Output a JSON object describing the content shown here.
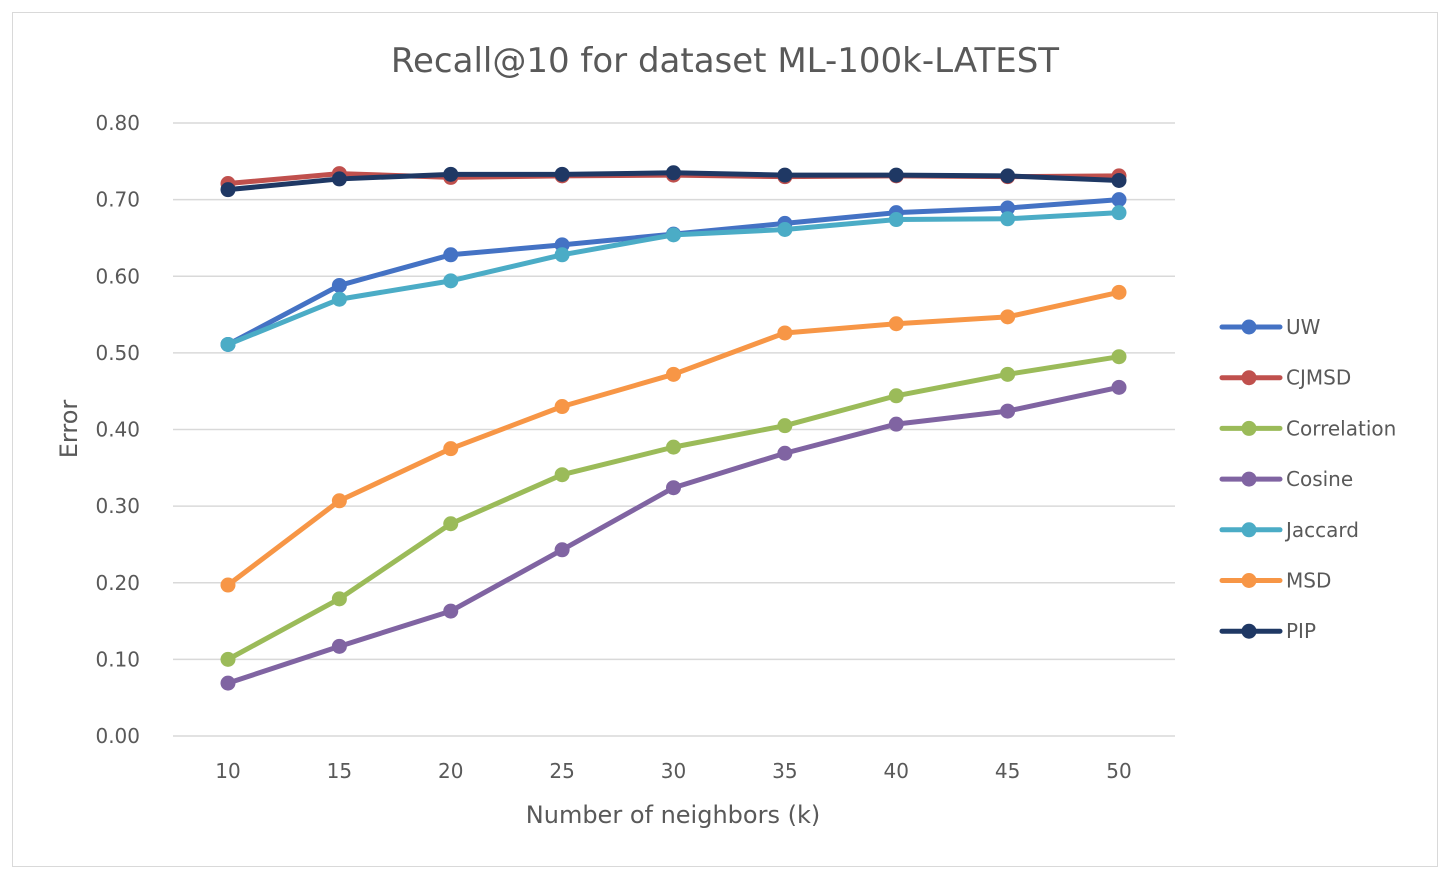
{
  "chart_data": {
    "type": "line",
    "title": "Recall@10 for dataset ML-100k-LATEST",
    "xlabel": "Number of neighbors (k)",
    "ylabel": "Error",
    "x": [
      10,
      15,
      20,
      25,
      30,
      35,
      40,
      45,
      50
    ],
    "x_tick_labels": [
      "10",
      "15",
      "20",
      "25",
      "30",
      "35",
      "40",
      "45",
      "50"
    ],
    "ylim": [
      0,
      0.8
    ],
    "y_ticks": [
      0,
      0.1,
      0.2,
      0.3,
      0.4,
      0.5,
      0.6,
      0.7,
      0.8
    ],
    "y_tick_labels": [
      "0.00",
      "0.10",
      "0.20",
      "0.30",
      "0.40",
      "0.50",
      "0.60",
      "0.70",
      "0.80"
    ],
    "grid": true,
    "legend_position": "right",
    "series": [
      {
        "name": "UW",
        "color": "#4472c4",
        "values": [
          0.511,
          0.588,
          0.628,
          0.641,
          0.655,
          0.669,
          0.683,
          0.689,
          0.7
        ]
      },
      {
        "name": "CJMSD",
        "color": "#c0504d",
        "values": [
          0.721,
          0.734,
          0.729,
          0.731,
          0.732,
          0.73,
          0.731,
          0.73,
          0.731
        ]
      },
      {
        "name": "Correlation",
        "color": "#9bbb59",
        "values": [
          0.1,
          0.179,
          0.277,
          0.341,
          0.377,
          0.405,
          0.444,
          0.472,
          0.495
        ]
      },
      {
        "name": "Cosine",
        "color": "#8064a2",
        "values": [
          0.069,
          0.117,
          0.163,
          0.243,
          0.324,
          0.369,
          0.407,
          0.424,
          0.455
        ]
      },
      {
        "name": "Jaccard",
        "color": "#4bacc6",
        "values": [
          0.511,
          0.57,
          0.594,
          0.628,
          0.654,
          0.661,
          0.674,
          0.675,
          0.683
        ]
      },
      {
        "name": "MSD",
        "color": "#f79646",
        "values": [
          0.197,
          0.307,
          0.375,
          0.43,
          0.472,
          0.526,
          0.538,
          0.547,
          0.579
        ]
      },
      {
        "name": "PIP",
        "color": "#1f3864",
        "values": [
          0.713,
          0.727,
          0.733,
          0.733,
          0.735,
          0.732,
          0.732,
          0.731,
          0.725
        ]
      }
    ]
  }
}
